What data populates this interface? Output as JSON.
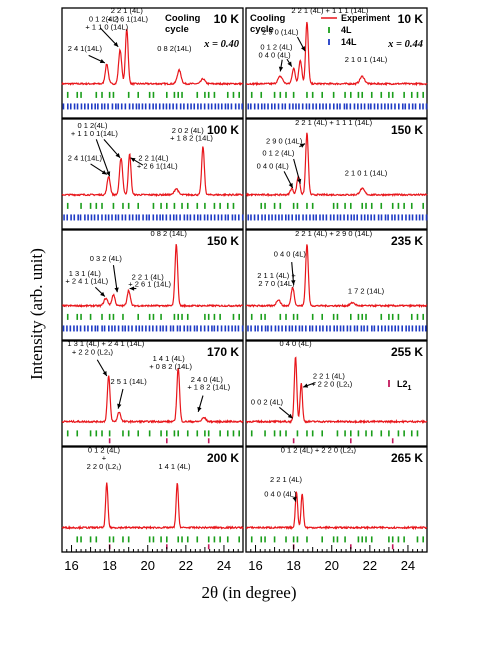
{
  "chart_data": {
    "type": "line",
    "figure": {
      "xlabel_prefix": "2θ",
      "xlabel_suffix": " (in degree)",
      "ylabel": "Intensity (arb. unit)",
      "xlim": [
        15.5,
        25
      ],
      "xticks": [
        16,
        18,
        20,
        22,
        24
      ],
      "legend": {
        "experiment": "Experiment",
        "phase_4L": "4L",
        "phase_14L": "14L",
        "phase_L21": "L2",
        "phase_L21_sub": "1"
      },
      "colors": {
        "experiment": "#e8161b",
        "phase_4L": "#1a9e1a",
        "phase_14L": "#1d39c4",
        "phase_L21": "#c2185b"
      }
    },
    "panels": [
      {
        "id": "l0",
        "col": 0,
        "row": 0,
        "temperature": "10 K",
        "cycle_label": [
          "Cooling",
          "cycle"
        ],
        "composition": "x = 0.40",
        "show_4L": true,
        "show_14L": true,
        "show_L21": false,
        "peaks": [
          [
            17.85,
            0.32,
            0.08
          ],
          [
            18.55,
            0.55,
            0.08
          ],
          [
            18.9,
            0.9,
            0.07
          ],
          [
            21.65,
            0.22,
            0.1
          ],
          [
            22.9,
            0.08,
            0.1
          ]
        ],
        "annotations": [
          {
            "text": "2 2 1 (4L)",
            "x": 18.9,
            "y": 1.17
          },
          {
            "text": "0 1 2(4L)",
            "x": 17.7,
            "y": 1.03
          },
          {
            "text": "+ 2 6 1(14L)",
            "x": 18.95,
            "y": 1.03
          },
          {
            "text": "+ 1 1 0 (14L)",
            "x": 17.85,
            "y": 0.9
          },
          {
            "text": "2 4 1(14L)",
            "x": 16.7,
            "y": 0.55
          },
          {
            "text": "0 8 2(14L)",
            "x": 21.4,
            "y": 0.55
          }
        ],
        "arrows": [
          [
            17.5,
            0.93,
            18.45,
            0.62
          ],
          [
            16.9,
            0.48,
            17.75,
            0.36
          ]
        ]
      },
      {
        "id": "r0",
        "col": 1,
        "row": 0,
        "temperature": "10 K",
        "cycle_label": [
          "Cooling",
          "cycle"
        ],
        "composition": "x = 0.44",
        "show_4L": true,
        "show_14L": true,
        "show_L21": false,
        "show_legend": true,
        "peaks": [
          [
            17.3,
            0.12,
            0.12
          ],
          [
            18.0,
            0.25,
            0.08
          ],
          [
            18.35,
            0.38,
            0.08
          ],
          [
            18.7,
            1.0,
            0.07
          ],
          [
            21.6,
            0.12,
            0.12
          ]
        ],
        "annotations": [
          {
            "text": "2 2 1 (4L) + 1 1 1 (14L)",
            "x": 19.9,
            "y": 1.17
          },
          {
            "text": "2 9 0 (14L)",
            "x": 17.3,
            "y": 0.82
          },
          {
            "text": "0 1 2 (4L)",
            "x": 17.1,
            "y": 0.58
          },
          {
            "text": "0 4 0 (4L)",
            "x": 17.0,
            "y": 0.45
          },
          {
            "text": "2 1 0 1 (14L)",
            "x": 21.8,
            "y": 0.37
          }
        ],
        "arrows": [
          [
            18.2,
            0.78,
            18.6,
            0.55
          ],
          [
            17.65,
            0.42,
            17.9,
            0.3
          ],
          [
            17.4,
            0.41,
            17.3,
            0.22
          ]
        ]
      },
      {
        "id": "l1",
        "col": 0,
        "row": 1,
        "temperature": "100 K",
        "show_4L": true,
        "show_14L": true,
        "show_L21": false,
        "peaks": [
          [
            17.95,
            0.3,
            0.08
          ],
          [
            18.6,
            0.6,
            0.08
          ],
          [
            19.05,
            0.66,
            0.07
          ],
          [
            21.5,
            0.1,
            0.1
          ],
          [
            22.9,
            0.78,
            0.07
          ]
        ],
        "annotations": [
          {
            "text": "0 1 2(4L)",
            "x": 17.1,
            "y": 1.1
          },
          {
            "text": "+ 1 1 0 1(14L)",
            "x": 17.2,
            "y": 0.97
          },
          {
            "text": "2 0 2 (4L)",
            "x": 22.1,
            "y": 1.02
          },
          {
            "text": "+ 1 8 2 (14L)",
            "x": 22.3,
            "y": 0.9
          },
          {
            "text": "2 4 1(14L)",
            "x": 16.7,
            "y": 0.58
          },
          {
            "text": "2 2 1(4L)",
            "x": 20.3,
            "y": 0.58
          },
          {
            "text": "+ 2 6 1(14L)",
            "x": 20.5,
            "y": 0.45
          }
        ],
        "arrows": [
          [
            17.3,
            0.92,
            18.0,
            0.32
          ],
          [
            17.7,
            0.92,
            18.55,
            0.62
          ],
          [
            17.0,
            0.52,
            17.85,
            0.35
          ],
          [
            19.75,
            0.5,
            19.1,
            0.62
          ]
        ]
      },
      {
        "id": "r1",
        "col": 1,
        "row": 1,
        "temperature": "150 K",
        "show_4L": true,
        "show_14L": true,
        "show_L21": false,
        "peaks": [
          [
            17.9,
            0.1,
            0.08
          ],
          [
            18.25,
            0.3,
            0.08
          ],
          [
            18.7,
            1.0,
            0.07
          ],
          [
            21.6,
            0.1,
            0.12
          ]
        ],
        "annotations": [
          {
            "text": "2 2 1 (4L) + 1 1 1 (14L)",
            "x": 20.1,
            "y": 1.15
          },
          {
            "text": "2 9 0 (14L)",
            "x": 17.5,
            "y": 0.85
          },
          {
            "text": "0 1 2 (4L)",
            "x": 17.2,
            "y": 0.66
          },
          {
            "text": "0 4 0 (4L)",
            "x": 16.9,
            "y": 0.45
          },
          {
            "text": "2 1 0 1 (14L)",
            "x": 21.8,
            "y": 0.33
          }
        ],
        "arrows": [
          [
            18.3,
            0.8,
            18.6,
            0.85
          ],
          [
            18.0,
            0.6,
            18.35,
            0.2
          ],
          [
            17.5,
            0.4,
            17.95,
            0.13
          ]
        ]
      },
      {
        "id": "l2",
        "col": 0,
        "row": 2,
        "temperature": "150 K",
        "show_4L": true,
        "show_14L": true,
        "show_L21": false,
        "peaks": [
          [
            17.8,
            0.12,
            0.1
          ],
          [
            18.2,
            0.18,
            0.08
          ],
          [
            19.0,
            0.25,
            0.08
          ],
          [
            21.5,
            1.0,
            0.07
          ]
        ],
        "annotations": [
          {
            "text": "0 8 2 (14L)",
            "x": 21.1,
            "y": 1.15
          },
          {
            "text": "0 3 2 (4L)",
            "x": 17.8,
            "y": 0.75
          },
          {
            "text": "1 3 1 (4L)",
            "x": 16.7,
            "y": 0.5
          },
          {
            "text": "+ 2 4 1 (14L)",
            "x": 16.8,
            "y": 0.38
          },
          {
            "text": "2 2 1 (4L)",
            "x": 20.0,
            "y": 0.45
          },
          {
            "text": "+ 2 6 1 (14L)",
            "x": 20.1,
            "y": 0.33
          }
        ],
        "arrows": [
          [
            18.2,
            0.68,
            18.4,
            0.24
          ],
          [
            17.25,
            0.32,
            17.75,
            0.17
          ],
          [
            19.4,
            0.3,
            19.05,
            0.3
          ]
        ]
      },
      {
        "id": "r2",
        "col": 1,
        "row": 2,
        "temperature": "235 K",
        "show_4L": true,
        "show_14L": true,
        "show_L21": false,
        "peaks": [
          [
            17.2,
            0.1,
            0.1
          ],
          [
            17.95,
            0.3,
            0.08
          ],
          [
            18.7,
            1.0,
            0.07
          ],
          [
            21.1,
            0.05,
            0.12
          ]
        ],
        "annotations": [
          {
            "text": "2 2 1 (4L) + 2 9 0 (14L)",
            "x": 20.1,
            "y": 1.15
          },
          {
            "text": "0 4 0 (4L)",
            "x": 17.8,
            "y": 0.82
          },
          {
            "text": "2 1 1 (4L) +",
            "x": 17.1,
            "y": 0.47
          },
          {
            "text": "2 7 0 (14L)",
            "x": 17.1,
            "y": 0.34
          },
          {
            "text": "1 7 2 (14L)",
            "x": 21.8,
            "y": 0.22
          }
        ],
        "arrows": [
          [
            17.9,
            0.73,
            18.0,
            0.36
          ]
        ]
      },
      {
        "id": "l3",
        "col": 0,
        "row": 3,
        "temperature": "170 K",
        "show_4L": true,
        "show_14L": false,
        "show_L21": true,
        "peaks": [
          [
            17.95,
            0.7,
            0.07
          ],
          [
            18.5,
            0.15,
            0.08
          ],
          [
            21.6,
            0.83,
            0.07
          ],
          [
            22.95,
            0.06,
            0.1
          ]
        ],
        "annotations": [
          {
            "text": "1 3 1 (4L) + 2 4 1 (14L)",
            "x": 17.8,
            "y": 1.18
          },
          {
            "text": "+ 2 2 0 (L2₁)",
            "x": 17.1,
            "y": 1.05
          },
          {
            "text": "1 4 1 (4L)",
            "x": 21.1,
            "y": 0.95
          },
          {
            "text": "+ 0 8 2 (14L)",
            "x": 21.2,
            "y": 0.83
          },
          {
            "text": "2 5 1 (14L)",
            "x": 19.0,
            "y": 0.6
          },
          {
            "text": "2 4 0 (4L)",
            "x": 23.1,
            "y": 0.63
          },
          {
            "text": "+ 1 8 2 (14L)",
            "x": 23.2,
            "y": 0.51
          }
        ],
        "arrows": [
          [
            17.35,
            0.97,
            17.85,
            0.72
          ],
          [
            18.7,
            0.52,
            18.45,
            0.22
          ],
          [
            22.9,
            0.42,
            22.65,
            0.17
          ]
        ]
      },
      {
        "id": "r3",
        "col": 1,
        "row": 3,
        "temperature": "255 K",
        "show_4L": true,
        "show_14L": false,
        "show_L21": true,
        "show_L21_legend": true,
        "peaks": [
          [
            18.1,
            1.0,
            0.065
          ],
          [
            18.4,
            0.6,
            0.06
          ]
        ],
        "annotations": [
          {
            "text": "0 4 0 (4L)",
            "x": 18.1,
            "y": 1.18
          },
          {
            "text": "2 2 1 (4L)",
            "x": 19.85,
            "y": 0.68
          },
          {
            "text": "+ 2 2 0 (L2₁)",
            "x": 20.0,
            "y": 0.56
          },
          {
            "text": "0 0 2 (4L)",
            "x": 16.6,
            "y": 0.28
          }
        ],
        "arrows": [
          [
            17.25,
            0.24,
            17.95,
            0.07
          ],
          [
            19.15,
            0.62,
            18.5,
            0.55
          ]
        ]
      },
      {
        "id": "l4",
        "col": 0,
        "row": 4,
        "temperature": "200 K",
        "show_4L": true,
        "show_14L": false,
        "show_L21": true,
        "peaks": [
          [
            17.85,
            0.68,
            0.06
          ],
          [
            21.55,
            0.68,
            0.06
          ]
        ],
        "annotations": [
          {
            "text": "0 1 2 (4L)",
            "x": 17.7,
            "y": 1.17
          },
          {
            "text": "+",
            "x": 17.7,
            "y": 1.05
          },
          {
            "text": "2 2 0 (L2₁)",
            "x": 17.7,
            "y": 0.92
          },
          {
            "text": "1 4 1 (4L)",
            "x": 21.4,
            "y": 0.92
          }
        ],
        "arrows": []
      },
      {
        "id": "r4",
        "col": 1,
        "row": 4,
        "temperature": "265 K",
        "show_4L": true,
        "show_14L": false,
        "show_L21": true,
        "peaks": [
          [
            18.15,
            0.55,
            0.06
          ],
          [
            18.45,
            0.52,
            0.06
          ]
        ],
        "annotations": [
          {
            "text": "0 1 2 (4L) + 2 2 0 (L2₁)",
            "x": 19.3,
            "y": 1.17
          },
          {
            "text": "2 2 1 (4L)",
            "x": 17.6,
            "y": 0.72
          },
          {
            "text": "0 4 0 (4L)",
            "x": 17.3,
            "y": 0.5
          }
        ],
        "arrows": [
          [
            18.05,
            0.48,
            18.1,
            0.42
          ]
        ]
      }
    ],
    "phase_ticks": {
      "4L": [
        15.8,
        16.3,
        16.5,
        17.0,
        17.3,
        17.6,
        18.0,
        18.2,
        18.7,
        19.0,
        19.5,
        20.1,
        20.3,
        20.7,
        21.0,
        21.4,
        21.6,
        21.8,
        22.1,
        22.6,
        23.0,
        23.2,
        23.5,
        23.8,
        24.2,
        24.5,
        24.8
      ],
      "14L_density": 0.18,
      "L21": [
        18.0,
        21.0,
        23.2
      ]
    }
  }
}
